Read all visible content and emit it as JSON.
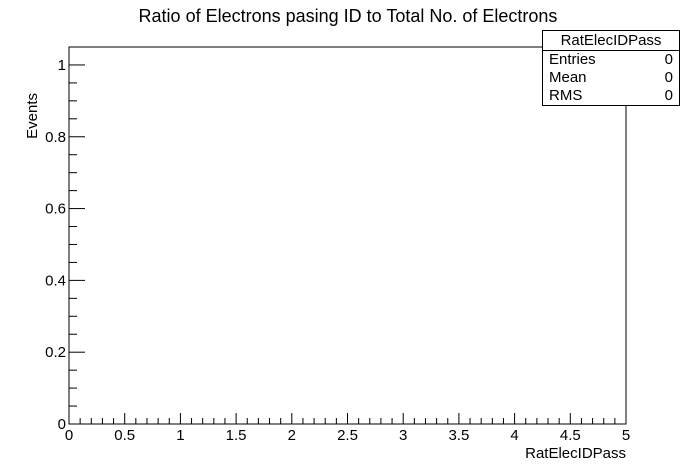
{
  "chart_data": {
    "type": "bar",
    "title": "Ratio of Electrons pasing ID to Total No. of Electrons",
    "xlabel": "RatElecIDPass",
    "ylabel": "Events",
    "xlim": [
      0,
      5
    ],
    "ylim": [
      0,
      1.05
    ],
    "x_tick_labels": [
      "0",
      "0.5",
      "1",
      "1.5",
      "2",
      "2.5",
      "3",
      "3.5",
      "4",
      "4.5",
      "5"
    ],
    "y_tick_labels": [
      "0",
      "0.2",
      "0.4",
      "0.6",
      "0.8",
      "1"
    ],
    "series": [
      {
        "values": []
      }
    ],
    "grid": false,
    "legend": "none"
  },
  "stats_box": {
    "name": "RatElecIDPass",
    "rows": [
      {
        "label": "Entries",
        "value": "0"
      },
      {
        "label": "Mean",
        "value": "0"
      },
      {
        "label": "RMS",
        "value": "0"
      }
    ]
  }
}
